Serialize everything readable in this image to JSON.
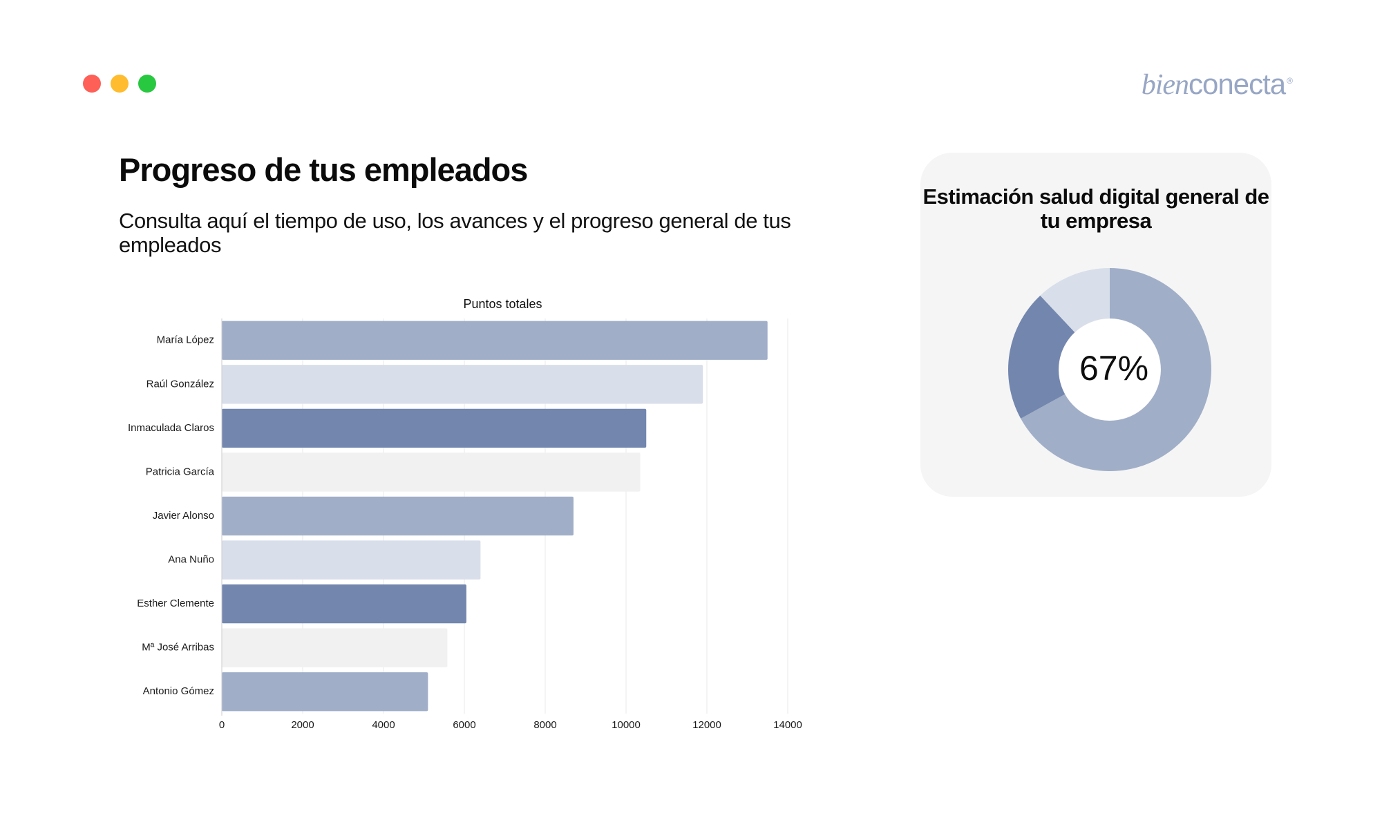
{
  "window": {
    "controls": [
      {
        "name": "close",
        "color": "#fe5f57"
      },
      {
        "name": "minimize",
        "color": "#febc2e"
      },
      {
        "name": "maximize",
        "color": "#28c840"
      }
    ]
  },
  "brand": {
    "part1": "bien",
    "part2": "conecta",
    "mark": "®",
    "color": "#97a6c4"
  },
  "header": {
    "title": "Progreso de tus empleados",
    "subtitle": "Consulta aquí el tiempo de uso, los avances y el progreso general de tus empleados"
  },
  "card": {
    "title": "Estimación salud digital general de tu empresa"
  },
  "chart_data": [
    {
      "type": "bar",
      "orientation": "horizontal",
      "title": "Puntos totales",
      "categories": [
        "María López",
        "Raúl González",
        "Inmaculada Claros",
        "Patricia García",
        "Javier Alonso",
        "Ana Nuño",
        "Esther Clemente",
        "Mª José Arribas",
        "Antonio Gómez"
      ],
      "values": [
        13500,
        11900,
        10500,
        10350,
        8700,
        6400,
        6050,
        5580,
        5100
      ],
      "colors": [
        "#a0aec8",
        "#d8deea",
        "#7286ae",
        "#f1f1f1",
        "#a0aec8",
        "#d8deea",
        "#7286ae",
        "#f1f1f1",
        "#a0aec8"
      ],
      "xlim": [
        0,
        14000
      ],
      "xticks": [
        "0",
        "2000",
        "4000",
        "6000",
        "8000",
        "10000",
        "12000",
        "14000"
      ],
      "grid": true,
      "xlabel": "",
      "ylabel": ""
    },
    {
      "type": "pie",
      "style": "donut",
      "center_label": "67%",
      "values": [
        67,
        21,
        12
      ],
      "colors": [
        "#a0aec8",
        "#7286ae",
        "#d8deea"
      ]
    }
  ]
}
